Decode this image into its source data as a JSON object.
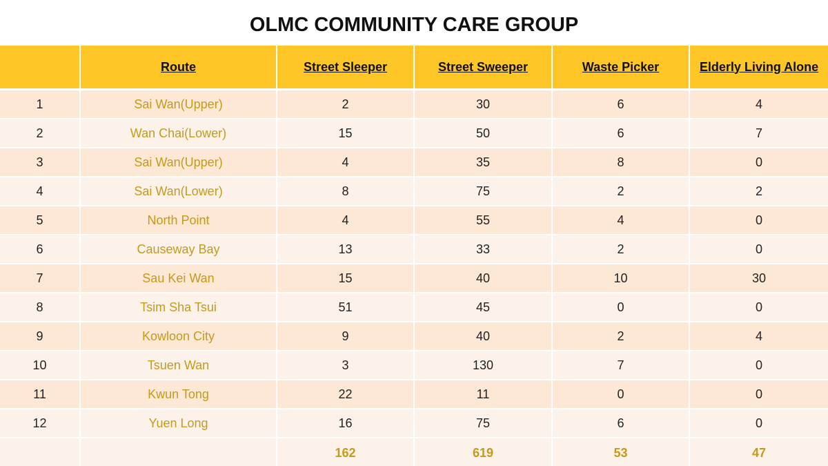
{
  "title": "OLMC COMMUNITY CARE GROUP",
  "colors": {
    "header_bg": "#fec627",
    "row_odd": "#fde7d5",
    "row_even": "#fdf2ea",
    "route_text": "#c39a1a"
  },
  "table": {
    "headers": [
      "",
      "Route",
      "Street Sleeper",
      "Street Sweeper",
      "Waste Picker",
      "Elderly Living Alone"
    ],
    "rows": [
      [
        "1",
        "Sai Wan(Upper)",
        "2",
        "30",
        "6",
        "4"
      ],
      [
        "2",
        "Wan Chai(Lower)",
        "15",
        "50",
        "6",
        "7"
      ],
      [
        "3",
        "Sai Wan(Upper)",
        "4",
        "35",
        "8",
        "0"
      ],
      [
        "4",
        "Sai Wan(Lower)",
        "8",
        "75",
        "2",
        "2"
      ],
      [
        "5",
        "North Point",
        "4",
        "55",
        "4",
        "0"
      ],
      [
        "6",
        "Causeway Bay",
        "13",
        "33",
        "2",
        "0"
      ],
      [
        "7",
        "Sau Kei Wan",
        "15",
        "40",
        "10",
        "30"
      ],
      [
        "8",
        "Tsim Sha Tsui",
        "51",
        "45",
        "0",
        "0"
      ],
      [
        "9",
        "Kowloon City",
        "9",
        "40",
        "2",
        "4"
      ],
      [
        "10",
        "Tsuen Wan",
        "3",
        "130",
        "7",
        "0"
      ],
      [
        "11",
        "Kwun Tong",
        "22",
        "11",
        "0",
        "0"
      ],
      [
        "12",
        "Yuen Long",
        "16",
        "75",
        "6",
        "0"
      ]
    ],
    "totals": [
      "",
      "",
      "162",
      "619",
      "53",
      "47"
    ]
  }
}
